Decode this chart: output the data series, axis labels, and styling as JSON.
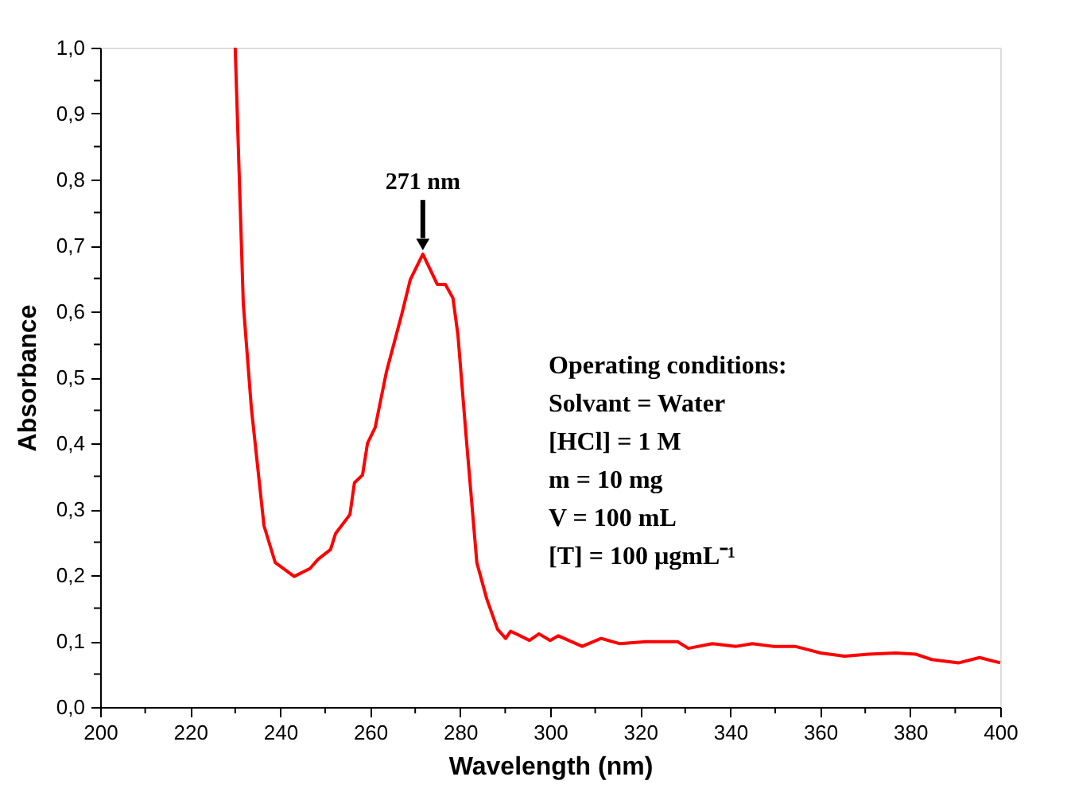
{
  "chart_data": {
    "type": "line",
    "xlabel": "Wavelength (nm)",
    "ylabel": "Absorbance",
    "x": [
      230.0,
      231.8,
      233.6,
      236.4,
      238.9,
      243.1,
      246.6,
      248.4,
      251.2,
      252.3,
      255.5,
      256.5,
      258.3,
      259.4,
      261.1,
      263.6,
      267.1,
      268.9,
      271.7,
      274.9,
      276.7,
      278.4,
      279.5,
      281.3,
      283.7,
      285.9,
      288.3,
      290.1,
      291.2,
      295.4,
      297.5,
      300.0,
      301.8,
      307.1,
      311.3,
      315.5,
      321.2,
      328.3,
      330.7,
      336.0,
      341.3,
      344.9,
      349.5,
      354.4,
      360.1,
      365.4,
      370.7,
      376.7,
      381.3,
      384.8,
      390.8,
      395.4,
      400.0
    ],
    "series": [
      {
        "color": "#ff0000",
        "values": [
          1.0,
          0.612,
          0.453,
          0.275,
          0.219,
          0.198,
          0.21,
          0.224,
          0.239,
          0.263,
          0.292,
          0.34,
          0.352,
          0.4,
          0.424,
          0.508,
          0.598,
          0.648,
          0.687,
          0.641,
          0.641,
          0.62,
          0.564,
          0.412,
          0.219,
          0.164,
          0.118,
          0.104,
          0.115,
          0.101,
          0.111,
          0.101,
          0.108,
          0.092,
          0.104,
          0.096,
          0.099,
          0.099,
          0.089,
          0.096,
          0.092,
          0.096,
          0.092,
          0.092,
          0.082,
          0.077,
          0.08,
          0.082,
          0.08,
          0.072,
          0.067,
          0.075,
          0.067
        ]
      }
    ],
    "xlim": [
      200,
      400
    ],
    "xticks": [
      200,
      {
        "value": 210,
        "label": null
      },
      220,
      {
        "value": 230,
        "label": null
      },
      240,
      {
        "value": 250,
        "label": null
      },
      260,
      {
        "value": 270,
        "label": null
      },
      280,
      {
        "value": 290,
        "label": null
      },
      300,
      {
        "value": 310,
        "label": null
      },
      320,
      {
        "value": 330,
        "label": null
      },
      340,
      {
        "value": 350,
        "label": null
      },
      360,
      {
        "value": 370,
        "label": null
      },
      380,
      {
        "value": 390,
        "label": null
      },
      400
    ],
    "ylim": [
      0,
      1
    ],
    "yticks": [
      {
        "value": 0,
        "label": "0,0"
      },
      {
        "value": 0.05,
        "label": null
      },
      {
        "value": 0.1,
        "label": "0,1"
      },
      {
        "value": 0.15,
        "label": null
      },
      {
        "value": 0.2,
        "label": "0,2"
      },
      {
        "value": 0.25,
        "label": null
      },
      {
        "value": 0.3,
        "label": "0,3"
      },
      {
        "value": 0.35,
        "label": null
      },
      {
        "value": 0.4,
        "label": "0,4"
      },
      {
        "value": 0.45,
        "label": null
      },
      {
        "value": 0.5,
        "label": "0,5"
      },
      {
        "value": 0.55,
        "label": null
      },
      {
        "value": 0.6,
        "label": "0,6"
      },
      {
        "value": 0.65,
        "label": null
      },
      {
        "value": 0.7,
        "label": "0,7"
      },
      {
        "value": 0.75,
        "label": null
      },
      {
        "value": 0.8,
        "label": "0,8"
      },
      {
        "value": 0.85,
        "label": null
      },
      {
        "value": 0.9,
        "label": "0,9"
      },
      {
        "value": 0.95,
        "label": null
      },
      {
        "value": 1.0,
        "label": "1,0"
      }
    ],
    "grid": false,
    "legend": false,
    "marker": "none",
    "line_style": "solid",
    "annotations": [
      {
        "text": "271 nm",
        "x": 271.7,
        "y": 0.687
      },
      "Operating conditions:",
      "Solvant = Water",
      "[HCl] = 1 M",
      "m = 10 mg",
      "V = 100 mL",
      "[T] = 100 µgmL⁻¹"
    ]
  }
}
